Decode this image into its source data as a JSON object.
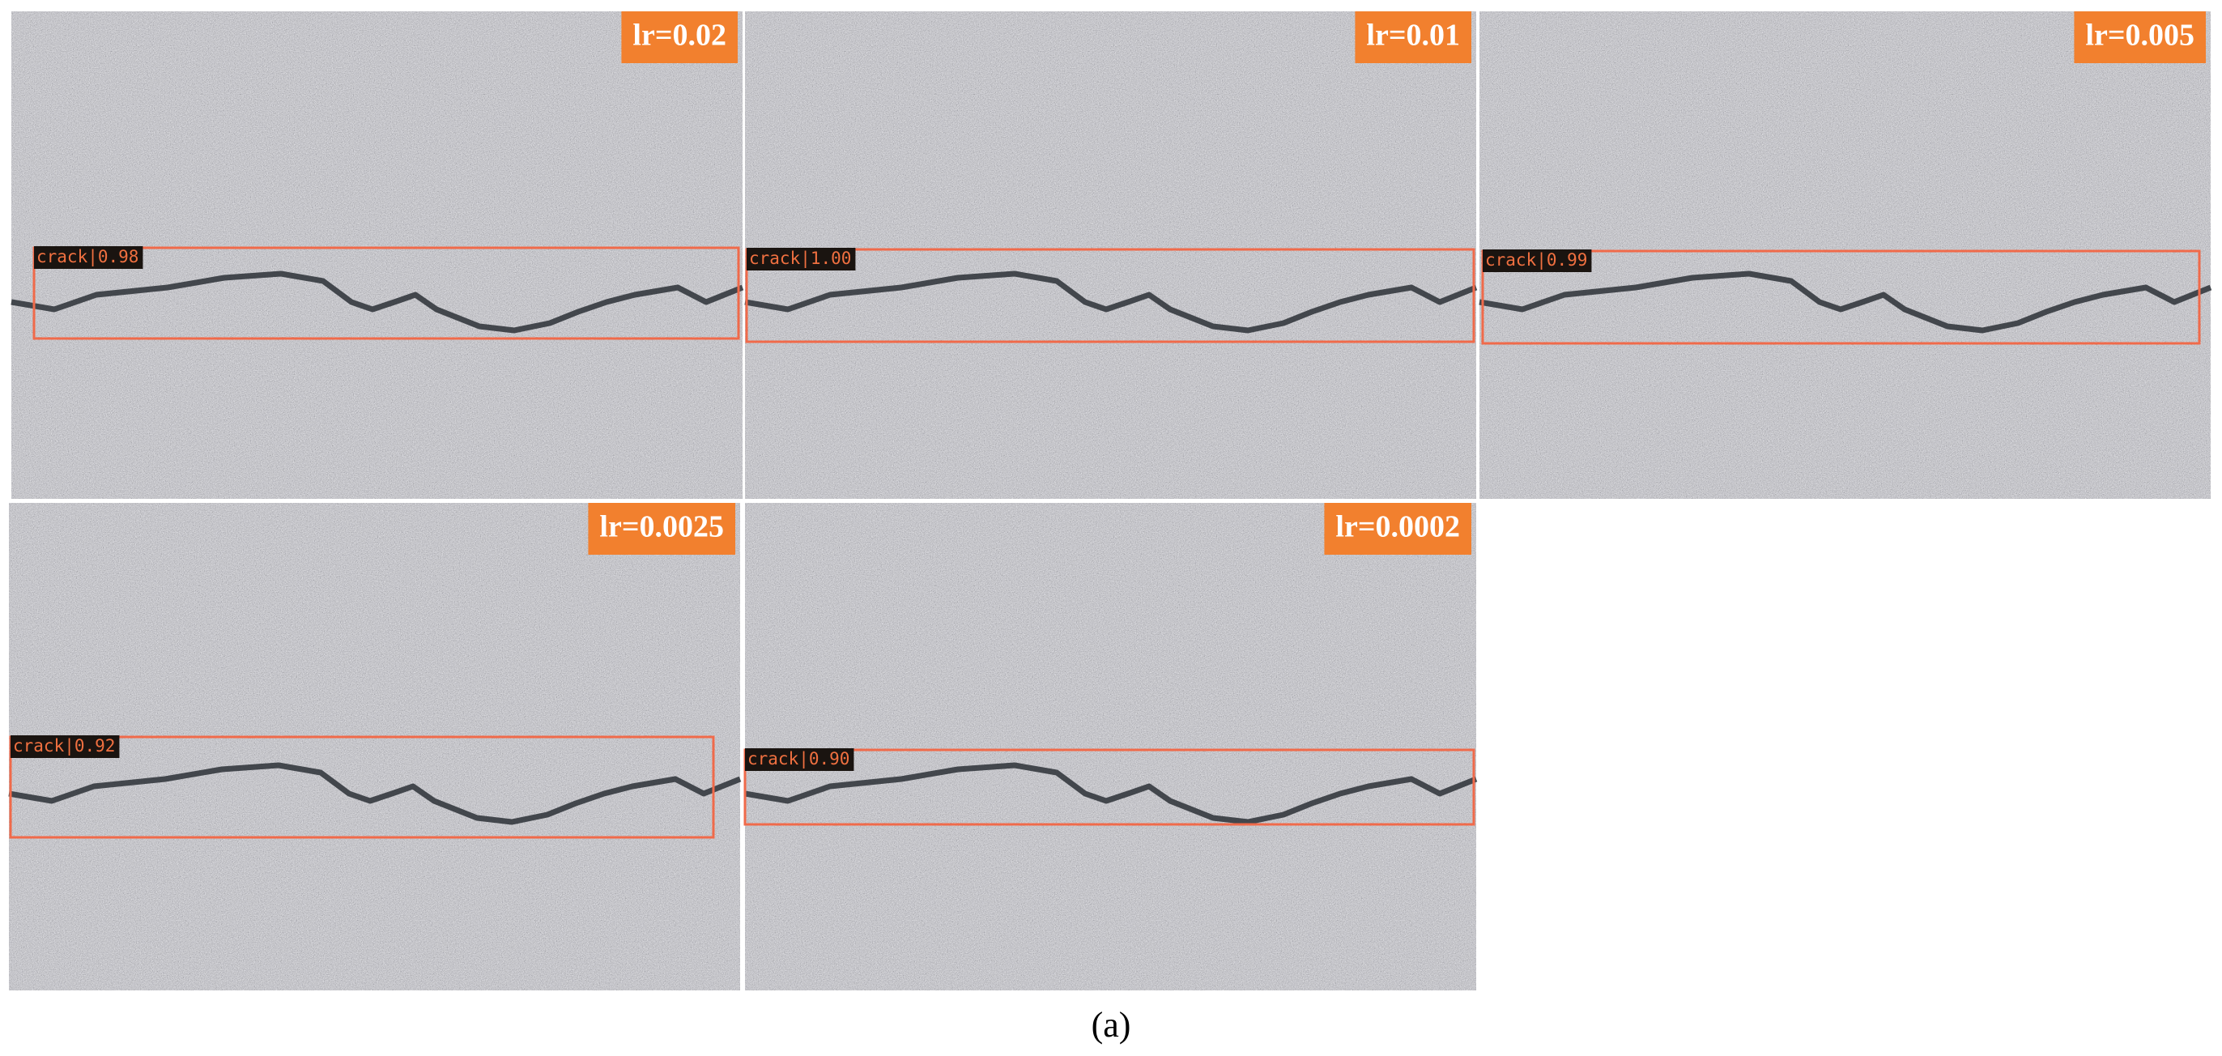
{
  "panels": [
    {
      "lr_label": "lr=0.02",
      "detection_label": "crack|0.98"
    },
    {
      "lr_label": "lr=0.01",
      "detection_label": "crack|1.00"
    },
    {
      "lr_label": "lr=0.005",
      "detection_label": "crack|0.99"
    },
    {
      "lr_label": "lr=0.0025",
      "detection_label": "crack|0.92"
    },
    {
      "lr_label": "lr=0.0002",
      "detection_label": "crack|0.90"
    }
  ],
  "caption": "(a)"
}
